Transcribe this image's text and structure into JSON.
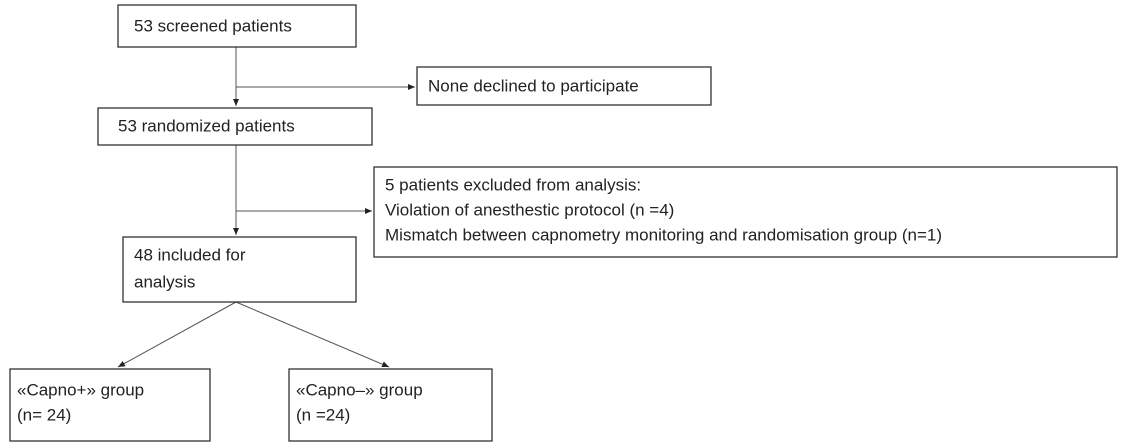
{
  "nodes": [
    {
      "lines": [
        "53 screened patients"
      ]
    },
    {
      "lines": [
        "None declined to participate"
      ]
    },
    {
      "lines": [
        "53 randomized patients"
      ]
    },
    {
      "lines": [
        "5 patients excluded from analysis:",
        "Violation of anesthestic protocol (n =4)",
        "Mismatch between capnometry monitoring and randomisation group (n=1)"
      ]
    },
    {
      "lines": [
        "48 included for",
        "analysis"
      ]
    },
    {
      "lines": [
        "«Capno+» group",
        "(n= 24)"
      ]
    },
    {
      "lines": [
        "«Capno–» group",
        "(n =24)"
      ]
    }
  ]
}
